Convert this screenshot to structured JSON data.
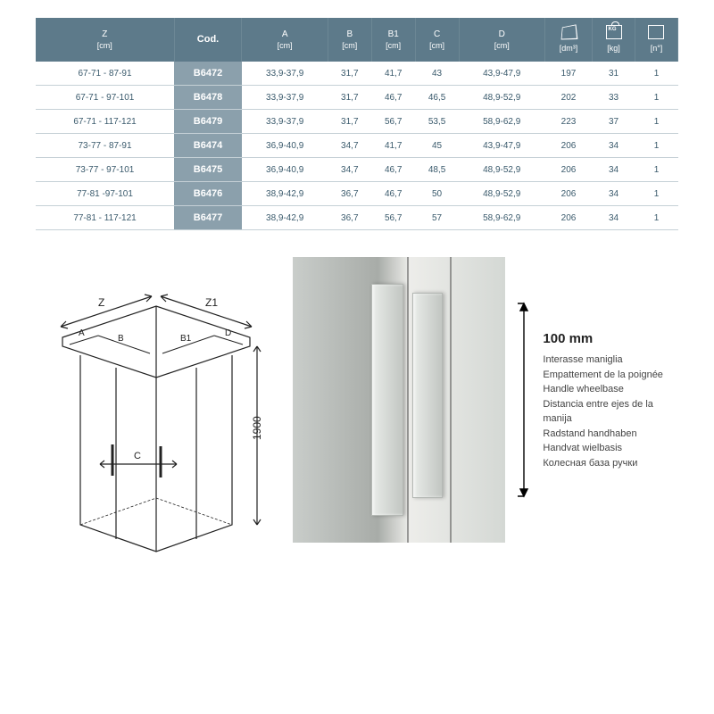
{
  "table": {
    "header_bg": "#5d7a8a",
    "code_col_bg": "#8ba0ac",
    "text_color": "#3a5a6c",
    "columns": [
      {
        "label": "Z",
        "unit": "[cm]"
      },
      {
        "label": "Cod.",
        "unit": ""
      },
      {
        "label": "A",
        "unit": "[cm]"
      },
      {
        "label": "B",
        "unit": "[cm]"
      },
      {
        "label": "B1",
        "unit": "[cm]"
      },
      {
        "label": "C",
        "unit": "[cm]"
      },
      {
        "label": "D",
        "unit": "[cm]"
      },
      {
        "icon": "cube",
        "unit": "[dm³]"
      },
      {
        "icon": "kg",
        "unit": "[kg]"
      },
      {
        "icon": "panel",
        "unit": "[n°]"
      }
    ],
    "rows": [
      [
        "67-71 - 87-91",
        "B6472",
        "33,9-37,9",
        "31,7",
        "41,7",
        "43",
        "43,9-47,9",
        "197",
        "31",
        "1"
      ],
      [
        "67-71 - 97-101",
        "B6478",
        "33,9-37,9",
        "31,7",
        "46,7",
        "46,5",
        "48,9-52,9",
        "202",
        "33",
        "1"
      ],
      [
        "67-71 - 117-121",
        "B6479",
        "33,9-37,9",
        "31,7",
        "56,7",
        "53,5",
        "58,9-62,9",
        "223",
        "37",
        "1"
      ],
      [
        "73-77 - 87-91",
        "B6474",
        "36,9-40,9",
        "34,7",
        "41,7",
        "45",
        "43,9-47,9",
        "206",
        "34",
        "1"
      ],
      [
        "73-77 - 97-101",
        "B6475",
        "36,9-40,9",
        "34,7",
        "46,7",
        "48,5",
        "48,9-52,9",
        "206",
        "34",
        "1"
      ],
      [
        "77-81 -97-101",
        "B6476",
        "38,9-42,9",
        "36,7",
        "46,7",
        "50",
        "48,9-52,9",
        "206",
        "34",
        "1"
      ],
      [
        "77-81 - 117-121",
        "B6477",
        "38,9-42,9",
        "36,7",
        "56,7",
        "57",
        "58,9-62,9",
        "206",
        "34",
        "1"
      ]
    ]
  },
  "drawing": {
    "labels": {
      "Z": "Z",
      "Z1": "Z1",
      "A": "A",
      "B": "B",
      "B1": "B1",
      "C": "C",
      "D": "D",
      "height": "1900"
    }
  },
  "handle_dim": {
    "value": "100 mm",
    "translations": [
      "Interasse maniglia",
      "Empattement de la poignée",
      "Handle wheelbase",
      "Distancia entre ejes de la manija",
      "Radstand handhaben",
      "Handvat wielbasis",
      "Колесная база ручки"
    ]
  }
}
